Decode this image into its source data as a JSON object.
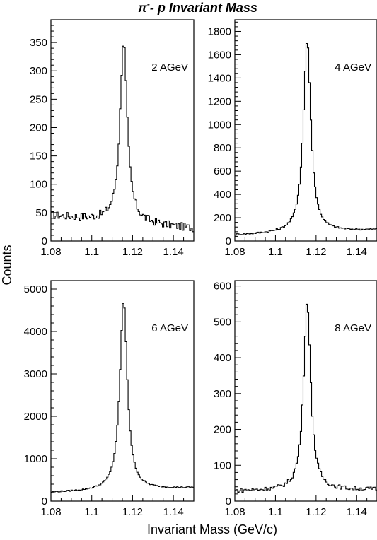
{
  "figure_title": {
    "prefix": "π",
    "superscript": "-",
    "main": "- p Invariant Mass"
  },
  "xlabel": "Invariant Mass (GeV/c)",
  "ylabel": "Counts",
  "chart_data": [
    {
      "type": "line",
      "panel": "top-left",
      "label": "2 AGeV",
      "xlim": [
        1.08,
        1.15
      ],
      "ylim": [
        0,
        390
      ],
      "xticks": [
        1.08,
        1.1,
        1.12,
        1.14
      ],
      "xtick_labels": [
        "1.08",
        "1.1",
        "1.12",
        "1.14"
      ],
      "yticks": [
        0,
        50,
        100,
        150,
        200,
        250,
        300,
        350
      ],
      "ytick_labels": [
        "0",
        "50",
        "100",
        "150",
        "200",
        "250",
        "300",
        "350"
      ],
      "peak": 352,
      "bg_left": 45,
      "bg_right": 22,
      "width": 0.0021,
      "noise": 7,
      "series": [
        {
          "x_range": [
            1.08,
            1.15
          ],
          "bins": 100
        }
      ]
    },
    {
      "type": "line",
      "panel": "top-right",
      "label": "4 AGeV",
      "xlim": [
        1.08,
        1.15
      ],
      "ylim": [
        0,
        1900
      ],
      "xticks": [
        1.08,
        1.1,
        1.12,
        1.14
      ],
      "xtick_labels": [
        "1.08",
        "1.1",
        "1.12",
        "1.14"
      ],
      "yticks": [
        0,
        200,
        400,
        600,
        800,
        1000,
        1200,
        1400,
        1600,
        1800
      ],
      "ytick_labels": [
        "0",
        "200",
        "400",
        "600",
        "800",
        "1000",
        "1200",
        "1400",
        "1600",
        "1800"
      ],
      "peak": 1720,
      "bg_left": 50,
      "bg_right": 95,
      "width": 0.0022,
      "noise": 8,
      "series": [
        {
          "x_range": [
            1.08,
            1.15
          ],
          "bins": 100
        }
      ]
    },
    {
      "type": "line",
      "panel": "bottom-left",
      "label": "6 AGeV",
      "xlim": [
        1.08,
        1.15
      ],
      "ylim": [
        0,
        5200
      ],
      "xticks": [
        1.08,
        1.1,
        1.12,
        1.14
      ],
      "xtick_labels": [
        "1.08",
        "1.1",
        "1.12",
        "1.14"
      ],
      "yticks": [
        0,
        1000,
        2000,
        3000,
        4000,
        5000
      ],
      "ytick_labels": [
        "0",
        "1000",
        "2000",
        "3000",
        "4000",
        "5000"
      ],
      "peak": 4720,
      "bg_left": 200,
      "bg_right": 310,
      "width": 0.0022,
      "noise": 15,
      "series": [
        {
          "x_range": [
            1.08,
            1.15
          ],
          "bins": 100
        }
      ]
    },
    {
      "type": "line",
      "panel": "bottom-right",
      "label": "8 AGeV",
      "xlim": [
        1.08,
        1.15
      ],
      "ylim": [
        0,
        615
      ],
      "xticks": [
        1.08,
        1.1,
        1.12,
        1.14
      ],
      "xtick_labels": [
        "1.08",
        "1.1",
        "1.12",
        "1.14"
      ],
      "yticks": [
        0,
        100,
        200,
        300,
        400,
        500,
        600
      ],
      "ytick_labels": [
        "0",
        "100",
        "200",
        "300",
        "400",
        "500",
        "600"
      ],
      "peak": 555,
      "bg_left": 28,
      "bg_right": 32,
      "width": 0.0021,
      "noise": 6,
      "series": [
        {
          "x_range": [
            1.08,
            1.15
          ],
          "bins": 100
        }
      ]
    }
  ]
}
